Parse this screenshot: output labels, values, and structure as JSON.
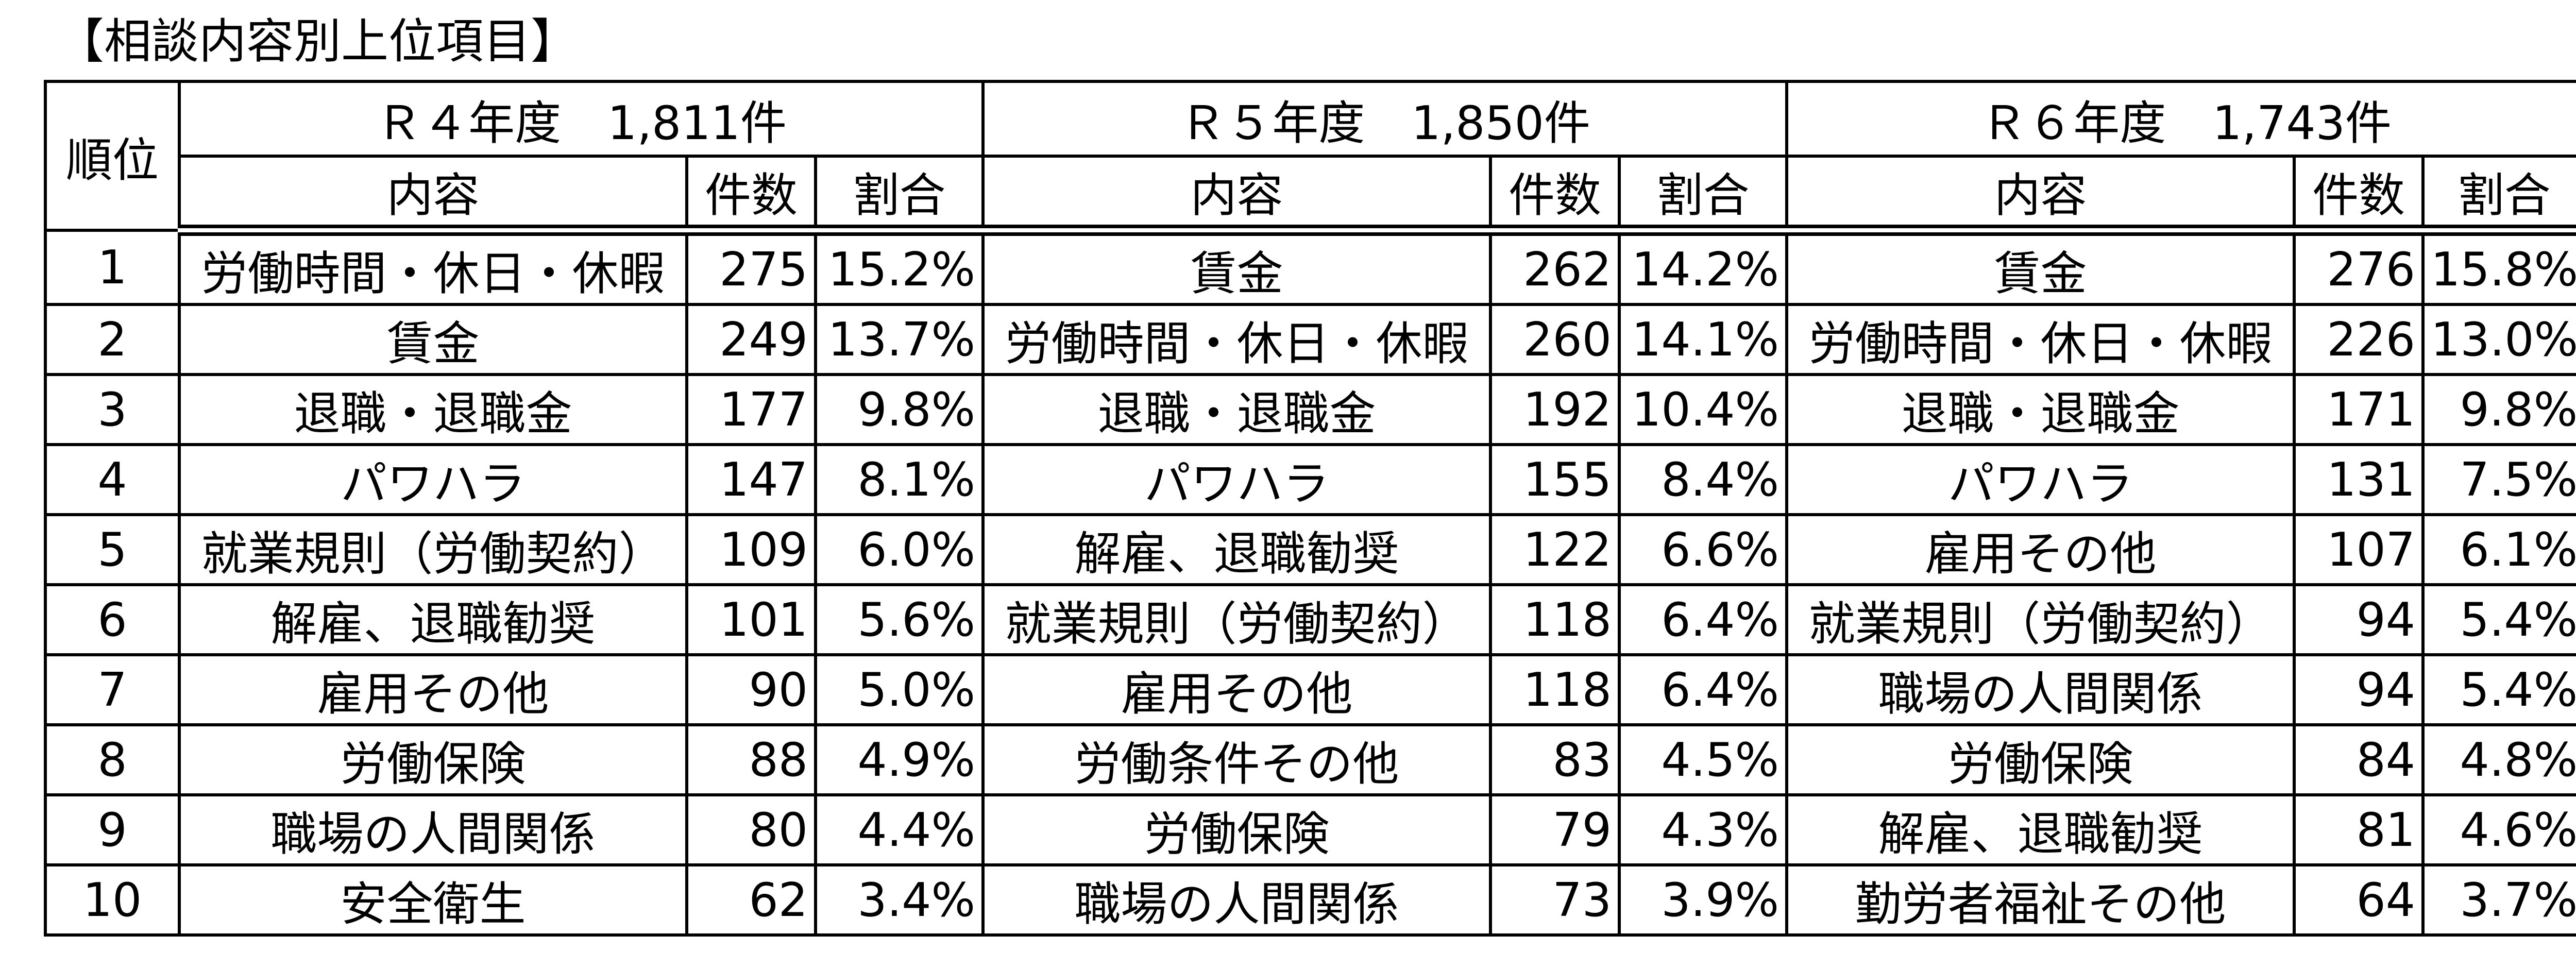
{
  "title": "【相談内容別上位項目】",
  "header": {
    "rank_label": "順位",
    "years": [
      {
        "label": "Ｒ４年度　1,811件"
      },
      {
        "label": "Ｒ５年度　1,850件"
      },
      {
        "label": "Ｒ６年度　1,743件"
      }
    ],
    "sub": {
      "content": "内容",
      "count": "件数",
      "ratio": "割合"
    }
  },
  "rows": [
    {
      "rank": "1",
      "r4": {
        "item": "労働時間・休日・休暇",
        "count": "275",
        "ratio": "15.2%"
      },
      "r5": {
        "item": "賃金",
        "count": "262",
        "ratio": "14.2%"
      },
      "r6": {
        "item": "賃金",
        "count": "276",
        "ratio": "15.8%"
      }
    },
    {
      "rank": "2",
      "r4": {
        "item": "賃金",
        "count": "249",
        "ratio": "13.7%"
      },
      "r5": {
        "item": "労働時間・休日・休暇",
        "count": "260",
        "ratio": "14.1%"
      },
      "r6": {
        "item": "労働時間・休日・休暇",
        "count": "226",
        "ratio": "13.0%"
      }
    },
    {
      "rank": "3",
      "r4": {
        "item": "退職・退職金",
        "count": "177",
        "ratio": "9.8%"
      },
      "r5": {
        "item": "退職・退職金",
        "count": "192",
        "ratio": "10.4%"
      },
      "r6": {
        "item": "退職・退職金",
        "count": "171",
        "ratio": "9.8%"
      }
    },
    {
      "rank": "4",
      "r4": {
        "item": "パワハラ",
        "count": "147",
        "ratio": "8.1%"
      },
      "r5": {
        "item": "パワハラ",
        "count": "155",
        "ratio": "8.4%"
      },
      "r6": {
        "item": "パワハラ",
        "count": "131",
        "ratio": "7.5%"
      }
    },
    {
      "rank": "5",
      "r4": {
        "item": "就業規則（労働契約）",
        "count": "109",
        "ratio": "6.0%"
      },
      "r5": {
        "item": "解雇、退職勧奨",
        "count": "122",
        "ratio": "6.6%"
      },
      "r6": {
        "item": "雇用その他",
        "count": "107",
        "ratio": "6.1%"
      }
    },
    {
      "rank": "6",
      "r4": {
        "item": "解雇、退職勧奨",
        "count": "101",
        "ratio": "5.6%"
      },
      "r5": {
        "item": "就業規則（労働契約）",
        "count": "118",
        "ratio": "6.4%"
      },
      "r6": {
        "item": "就業規則（労働契約）",
        "count": "94",
        "ratio": "5.4%"
      }
    },
    {
      "rank": "7",
      "r4": {
        "item": "雇用その他",
        "count": "90",
        "ratio": "5.0%"
      },
      "r5": {
        "item": "雇用その他",
        "count": "118",
        "ratio": "6.4%"
      },
      "r6": {
        "item": "職場の人間関係",
        "count": "94",
        "ratio": "5.4%"
      }
    },
    {
      "rank": "8",
      "r4": {
        "item": "労働保険",
        "count": "88",
        "ratio": "4.9%"
      },
      "r5": {
        "item": "労働条件その他",
        "count": "83",
        "ratio": "4.5%"
      },
      "r6": {
        "item": "労働保険",
        "count": "84",
        "ratio": "4.8%"
      }
    },
    {
      "rank": "9",
      "r4": {
        "item": "職場の人間関係",
        "count": "80",
        "ratio": "4.4%"
      },
      "r5": {
        "item": "労働保険",
        "count": "79",
        "ratio": "4.3%"
      },
      "r6": {
        "item": "解雇、退職勧奨",
        "count": "81",
        "ratio": "4.6%"
      }
    },
    {
      "rank": "10",
      "r4": {
        "item": "安全衛生",
        "count": "62",
        "ratio": "3.4%"
      },
      "r5": {
        "item": "職場の人間関係",
        "count": "73",
        "ratio": "3.9%"
      },
      "r6": {
        "item": "勤労者福祉その他",
        "count": "64",
        "ratio": "3.7%"
      }
    }
  ]
}
